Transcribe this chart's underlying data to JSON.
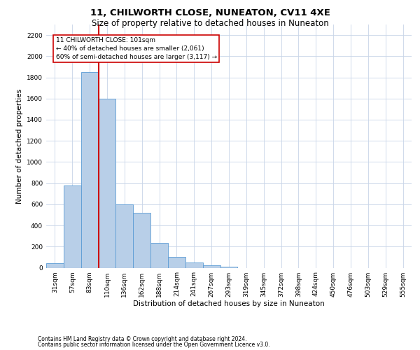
{
  "title": "11, CHILWORTH CLOSE, NUNEATON, CV11 4XE",
  "subtitle": "Size of property relative to detached houses in Nuneaton",
  "xlabel": "Distribution of detached houses by size in Nuneaton",
  "ylabel": "Number of detached properties",
  "categories": [
    "31sqm",
    "57sqm",
    "83sqm",
    "110sqm",
    "136sqm",
    "162sqm",
    "188sqm",
    "214sqm",
    "241sqm",
    "267sqm",
    "293sqm",
    "319sqm",
    "345sqm",
    "372sqm",
    "398sqm",
    "424sqm",
    "450sqm",
    "476sqm",
    "503sqm",
    "529sqm",
    "555sqm"
  ],
  "values": [
    45,
    780,
    1850,
    1600,
    600,
    520,
    235,
    100,
    50,
    25,
    10,
    0,
    0,
    0,
    0,
    0,
    0,
    0,
    0,
    0,
    0
  ],
  "bar_color": "#b8cfe8",
  "bar_edge_color": "#5b9bd5",
  "vline_color": "#cc0000",
  "annotation_text": "11 CHILWORTH CLOSE: 101sqm\n← 40% of detached houses are smaller (2,061)\n60% of semi-detached houses are larger (3,117) →",
  "annotation_box_color": "#ffffff",
  "annotation_box_edge": "#cc0000",
  "ylim": [
    0,
    2300
  ],
  "yticks": [
    0,
    200,
    400,
    600,
    800,
    1000,
    1200,
    1400,
    1600,
    1800,
    2000,
    2200
  ],
  "footer1": "Contains HM Land Registry data © Crown copyright and database right 2024.",
  "footer2": "Contains public sector information licensed under the Open Government Licence v3.0.",
  "bg_color": "#ffffff",
  "grid_color": "#c8d4e8",
  "title_fontsize": 9.5,
  "subtitle_fontsize": 8.5,
  "ylabel_fontsize": 7.5,
  "xlabel_fontsize": 7.5,
  "tick_fontsize": 6.5,
  "footer_fontsize": 5.5,
  "annotation_fontsize": 6.5
}
